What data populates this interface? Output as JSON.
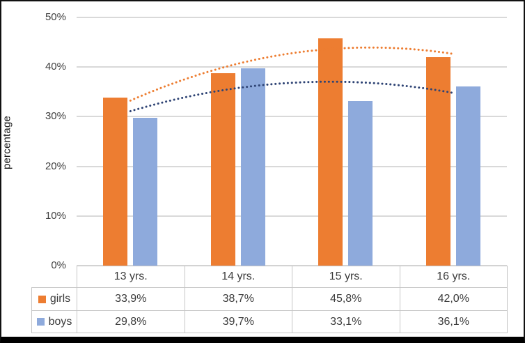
{
  "chart_data": {
    "type": "bar",
    "title": "",
    "ylabel": "percentage",
    "xlabel": "",
    "ylim": [
      0,
      50
    ],
    "ytick_step": 10,
    "yticks": [
      "0%",
      "10%",
      "20%",
      "30%",
      "40%",
      "50%"
    ],
    "grid": true,
    "legend_position": "table-left",
    "categories": [
      "13 yrs.",
      "14 yrs.",
      "15 yrs.",
      "16 yrs."
    ],
    "series": [
      {
        "name": "girls",
        "color": "#ED7D31",
        "values": [
          33.9,
          38.7,
          45.8,
          42.0
        ],
        "display_values": [
          "33,9%",
          "38,7%",
          "45,8%",
          "42,0%"
        ],
        "trendline": {
          "type": "polynomial",
          "order": 2,
          "style": "dotted",
          "color": "#ED7D31"
        }
      },
      {
        "name": "boys",
        "color": "#8EAADC",
        "values": [
          29.8,
          39.7,
          33.1,
          36.1
        ],
        "display_values": [
          "29,8%",
          "39,7%",
          "33,1%",
          "36,1%"
        ],
        "trendline": {
          "type": "polynomial",
          "order": 2,
          "style": "dotted",
          "color": "#2E4374"
        }
      }
    ]
  },
  "colors": {
    "gridline": "#d9d9d9",
    "table_border": "#c6c6c6",
    "text": "#3b3b3b",
    "frame_border": "#000000"
  }
}
